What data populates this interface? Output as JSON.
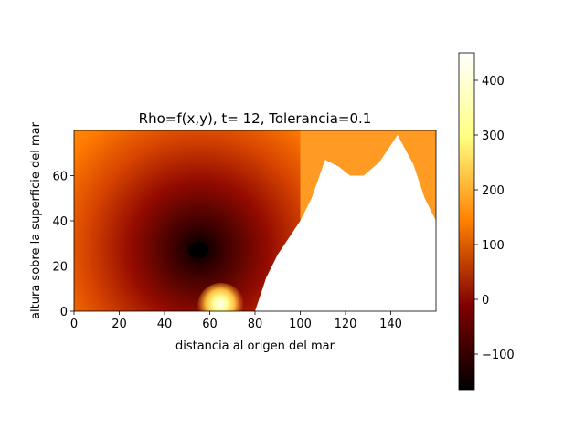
{
  "chart_data": [
    {
      "type": "heatmap",
      "title": "Rho=f(x,y), t= 12, Tolerancia=0.1",
      "xlabel": "distancia al origen del mar",
      "ylabel": "altura sobre la superficie del mar",
      "xlim": [
        0,
        160
      ],
      "ylim": [
        0,
        80
      ],
      "x_ticks": [
        "0",
        "20",
        "40",
        "60",
        "80",
        "100",
        "120",
        "140"
      ],
      "y_ticks": [
        "0",
        "20",
        "40",
        "60"
      ],
      "colormap": "afmhot",
      "field_features": {
        "minimum_region": {
          "x": 55,
          "y": 27
        },
        "maximum_region": {
          "x": 65,
          "y": 2
        },
        "land_profile_x": [
          80,
          85,
          90,
          100,
          105,
          111,
          117,
          122,
          128,
          135,
          143,
          150,
          155,
          160
        ],
        "land_profile_y": [
          0,
          15,
          25,
          40,
          50,
          67,
          64,
          60,
          60,
          66,
          78,
          65,
          50,
          40
        ]
      },
      "colorbar": {
        "range": [
          -165,
          450
        ],
        "ticks": [
          "−100",
          "0",
          "100",
          "200",
          "300",
          "400"
        ]
      }
    }
  ]
}
